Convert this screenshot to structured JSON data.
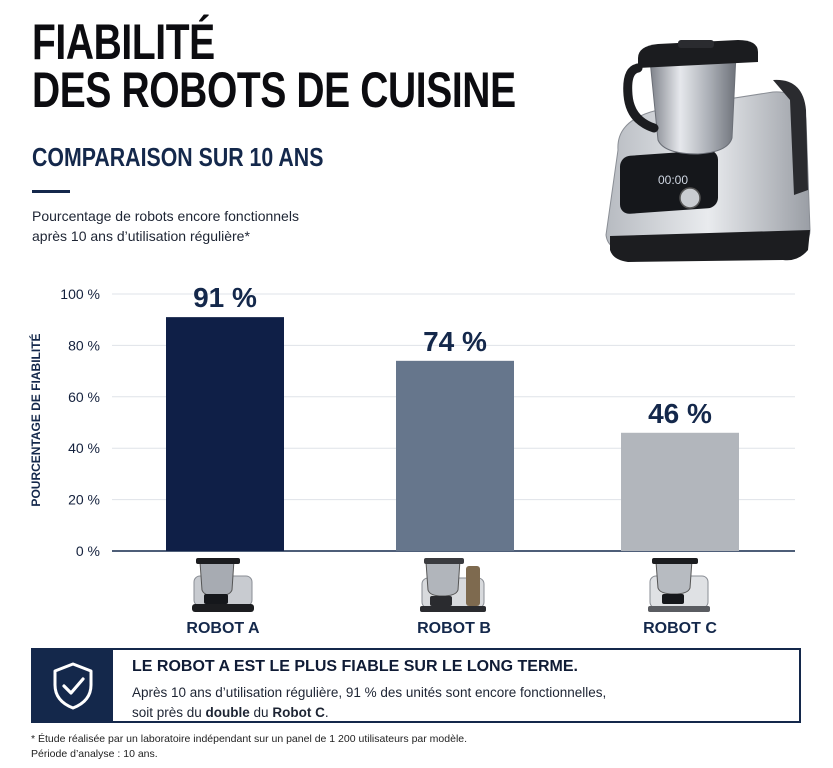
{
  "header": {
    "title_line1": "FIABILITÉ",
    "title_line2": "DES ROBOTS DE CUISINE",
    "subtitle": "COMPARAISON SUR 10 ANS",
    "desc_line1": "Pourcentage de robots encore fonctionnels",
    "desc_line2": "après 10 ans d’utilisation régulière*"
  },
  "hero": {
    "display_time": "00:00"
  },
  "chart_data": {
    "type": "bar",
    "categories": [
      "ROBOT A",
      "ROBOT B",
      "ROBOT C"
    ],
    "values": [
      91,
      74,
      46
    ],
    "data_labels": [
      "91 %",
      "74 %",
      "46 %"
    ],
    "colors": [
      "#0f1f47",
      "#66768c",
      "#b2b6bc"
    ],
    "ylabel": "POURCENTAGE DE FIABILITÉ",
    "ylim": [
      0,
      100
    ],
    "yticks": [
      0,
      20,
      40,
      60,
      80,
      100
    ],
    "ytick_labels": [
      "0 %",
      "20 %",
      "40 %",
      "60 %",
      "80 %",
      "100 %"
    ],
    "grid": true
  },
  "callout": {
    "icon": "shield-check-icon",
    "headline": "LE ROBOT A EST LE PLUS FIABLE SUR LE LONG TERME.",
    "body_line1": "Après 10 ans d’utilisation régulière, 91 % des unités sont encore fonctionnelles,",
    "body_line2_pre": "soit près du ",
    "body_line2_bold1": "double",
    "body_line2_mid": " du ",
    "body_line2_bold2": "Robot C",
    "body_line2_post": "."
  },
  "footnote": {
    "line1": "* Étude réalisée par un laboratoire indépendant sur un panel de 1 200 utilisateurs par modèle.",
    "line2": "Période d’analyse : 10 ans."
  }
}
